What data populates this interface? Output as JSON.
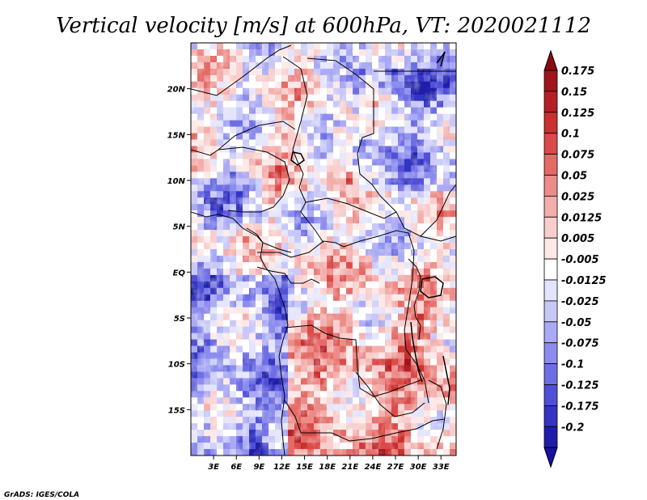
{
  "chart_data": {
    "type": "heatmap",
    "title": "Vertical velocity [m/s] at 600hPa, VT: 2020021112",
    "variable": "Vertical velocity",
    "units": "m/s",
    "level": "600hPa",
    "valid_time": "2020021112",
    "x_range_deg": [
      0,
      35
    ],
    "y_range_deg": [
      -20,
      25
    ],
    "x_ticks": [
      {
        "value": 3,
        "label": "3E"
      },
      {
        "value": 6,
        "label": "6E"
      },
      {
        "value": 9,
        "label": "9E"
      },
      {
        "value": 12,
        "label": "12E"
      },
      {
        "value": 15,
        "label": "15E"
      },
      {
        "value": 18,
        "label": "18E"
      },
      {
        "value": 21,
        "label": "21E"
      },
      {
        "value": 24,
        "label": "24E"
      },
      {
        "value": 27,
        "label": "27E"
      },
      {
        "value": 30,
        "label": "30E"
      },
      {
        "value": 33,
        "label": "33E"
      }
    ],
    "y_ticks": [
      {
        "value": 20,
        "label": "20N"
      },
      {
        "value": 15,
        "label": "15N"
      },
      {
        "value": 10,
        "label": "10N"
      },
      {
        "value": 5,
        "label": "5N"
      },
      {
        "value": 0,
        "label": "EQ"
      },
      {
        "value": -5,
        "label": "5S"
      },
      {
        "value": -10,
        "label": "10S"
      },
      {
        "value": -15,
        "label": "15S"
      }
    ],
    "colorbar": {
      "levels": [
        {
          "label": "0.175",
          "color": "#a0141e"
        },
        {
          "label": "0.15",
          "color": "#b61e26"
        },
        {
          "label": "0.125",
          "color": "#c93030"
        },
        {
          "label": "0.1",
          "color": "#da4a48"
        },
        {
          "label": "0.075",
          "color": "#e46a66"
        },
        {
          "label": "0.05",
          "color": "#ec8c88"
        },
        {
          "label": "0.025",
          "color": "#f3aeab"
        },
        {
          "label": "0.0125",
          "color": "#f8cecc"
        },
        {
          "label": "0.005",
          "color": "#fce8e6"
        },
        {
          "label": "-0.005",
          "color": "#ffffff"
        },
        {
          "label": "-0.0125",
          "color": "#e4e4fc"
        },
        {
          "label": "-0.025",
          "color": "#c8c8f8"
        },
        {
          "label": "-0.05",
          "color": "#aaaaf4"
        },
        {
          "label": "-0.075",
          "color": "#8c8cee"
        },
        {
          "label": "-0.1",
          "color": "#6e6ee4"
        },
        {
          "label": "-0.125",
          "color": "#5050d6"
        },
        {
          "label": "-0.175",
          "color": "#3434c2"
        },
        {
          "label": "-0.2",
          "color": "#1e1ea8"
        }
      ],
      "top_arrow_color": "#8c0a12",
      "bottom_arrow_color": "#1a10a0"
    },
    "credit": "GrADS: IGES/COLA"
  }
}
